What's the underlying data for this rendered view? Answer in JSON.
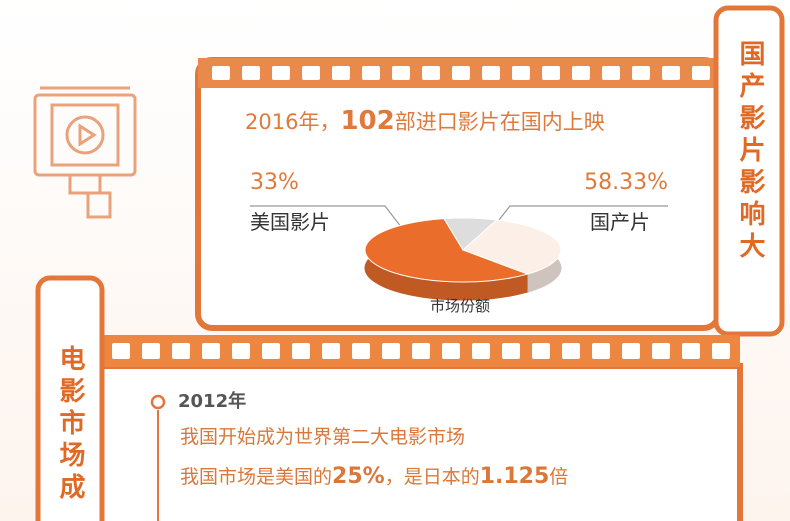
{
  "chart_data": {
    "type": "pie",
    "title_parts": [
      "2016年，",
      "102",
      "部进口影片在国内上映"
    ],
    "categories": [
      "美国影片",
      "国产片",
      null
    ],
    "values": [
      33,
      58.33,
      8.67
    ],
    "value_labels": [
      "33%",
      "58.33%",
      null
    ],
    "colors": [
      "#fbefe7",
      "#eb6d2b",
      "#dddddd"
    ],
    "caption": "市场份额"
  },
  "side_banner": "国产影片影响大",
  "section": {
    "vertical_title": "电影市场成",
    "timeline": [
      {
        "year": "2012年",
        "lines": [
          [
            "我国开始成为世界第二大电影市场"
          ],
          [
            "我国市场是美国的",
            "25%",
            "，是日本的",
            "1.125",
            "倍"
          ]
        ]
      }
    ]
  }
}
